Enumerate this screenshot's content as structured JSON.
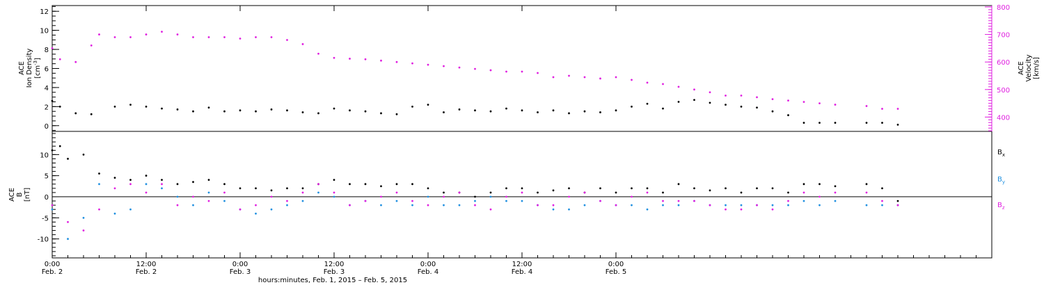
{
  "chart_data": [
    {
      "type": "scatter",
      "panel": "top",
      "left_axis": {
        "title_lines": [
          "ACE",
          "Ion Density"
        ],
        "unit_base": "[cm",
        "unit_sup": "-3",
        "unit_end": "]",
        "ticks": [
          0,
          2,
          4,
          6,
          8,
          10,
          12
        ],
        "ylim": [
          -0.6,
          12.6
        ],
        "color": "#000000"
      },
      "right_axis": {
        "title_lines": [
          "ACE",
          "Velocity"
        ],
        "unit": "[km/s]",
        "ticks": [
          400,
          500,
          600,
          700,
          800
        ],
        "ylim": [
          348,
          805
        ],
        "color": "#e020e0"
      },
      "series": [
        {
          "role": "density",
          "color": "#000000",
          "points": [
            [
              0,
              2.6
            ],
            [
              1,
              2.0
            ],
            [
              3,
              1.3
            ],
            [
              5,
              1.2
            ],
            [
              8,
              2.0
            ],
            [
              10,
              2.2
            ],
            [
              12,
              2.0
            ],
            [
              14,
              1.8
            ],
            [
              16,
              1.7
            ],
            [
              18,
              1.5
            ],
            [
              20,
              1.9
            ],
            [
              22,
              1.5
            ],
            [
              24,
              1.6
            ],
            [
              26,
              1.5
            ],
            [
              28,
              1.7
            ],
            [
              30,
              1.6
            ],
            [
              32,
              1.4
            ],
            [
              34,
              1.3
            ],
            [
              36,
              1.8
            ],
            [
              38,
              1.6
            ],
            [
              40,
              1.5
            ],
            [
              42,
              1.3
            ],
            [
              44,
              1.2
            ],
            [
              46,
              2.0
            ],
            [
              48,
              2.2
            ],
            [
              50,
              1.4
            ],
            [
              52,
              1.7
            ],
            [
              54,
              1.6
            ],
            [
              56,
              1.5
            ],
            [
              58,
              1.8
            ],
            [
              60,
              1.6
            ],
            [
              62,
              1.4
            ],
            [
              64,
              1.6
            ],
            [
              66,
              1.3
            ],
            [
              68,
              1.5
            ],
            [
              70,
              1.4
            ],
            [
              72,
              1.6
            ],
            [
              74,
              2.0
            ],
            [
              76,
              2.3
            ],
            [
              78,
              1.8
            ],
            [
              80,
              2.5
            ],
            [
              82,
              2.7
            ],
            [
              84,
              2.4
            ],
            [
              86,
              2.2
            ],
            [
              88,
              2.0
            ],
            [
              90,
              1.9
            ],
            [
              92,
              1.5
            ],
            [
              94,
              1.1
            ],
            [
              96,
              0.3
            ],
            [
              98,
              0.3
            ],
            [
              100,
              0.3
            ],
            [
              104,
              0.3
            ],
            [
              106,
              0.3
            ],
            [
              108,
              0.1
            ]
          ]
        },
        {
          "role": "velocity",
          "color": "#e020e0",
          "points": [
            [
              0,
              650
            ],
            [
              1,
              610
            ],
            [
              3,
              600
            ],
            [
              5,
              660
            ],
            [
              6,
              700
            ],
            [
              8,
              690
            ],
            [
              10,
              690
            ],
            [
              12,
              700
            ],
            [
              14,
              710
            ],
            [
              16,
              700
            ],
            [
              18,
              690
            ],
            [
              20,
              690
            ],
            [
              22,
              690
            ],
            [
              24,
              685
            ],
            [
              26,
              690
            ],
            [
              28,
              690
            ],
            [
              30,
              680
            ],
            [
              32,
              665
            ],
            [
              34,
              630
            ],
            [
              36,
              615
            ],
            [
              38,
              612
            ],
            [
              40,
              610
            ],
            [
              42,
              605
            ],
            [
              44,
              600
            ],
            [
              46,
              595
            ],
            [
              48,
              590
            ],
            [
              50,
              585
            ],
            [
              52,
              580
            ],
            [
              54,
              575
            ],
            [
              56,
              570
            ],
            [
              58,
              565
            ],
            [
              60,
              565
            ],
            [
              62,
              560
            ],
            [
              64,
              545
            ],
            [
              66,
              550
            ],
            [
              68,
              545
            ],
            [
              70,
              540
            ],
            [
              72,
              545
            ],
            [
              74,
              535
            ],
            [
              76,
              525
            ],
            [
              78,
              520
            ],
            [
              80,
              510
            ],
            [
              82,
              500
            ],
            [
              84,
              490
            ],
            [
              86,
              478
            ],
            [
              88,
              478
            ],
            [
              90,
              472
            ],
            [
              92,
              465
            ],
            [
              94,
              460
            ],
            [
              96,
              455
            ],
            [
              98,
              450
            ],
            [
              100,
              445
            ],
            [
              104,
              440
            ],
            [
              106,
              430
            ],
            [
              108,
              430
            ]
          ]
        }
      ]
    },
    {
      "type": "scatter",
      "panel": "bottom",
      "left_axis": {
        "title_lines": [
          "ACE",
          "B"
        ],
        "unit": "[nT]",
        "ticks": [
          -10,
          -5,
          0,
          5,
          10
        ],
        "ylim": [
          -14.5,
          15.5
        ],
        "zero_line": true
      },
      "series": [
        {
          "name": "B",
          "sub": "x",
          "color": "#000000",
          "points": [
            [
              0,
              11
            ],
            [
              1,
              12
            ],
            [
              2,
              9
            ],
            [
              4,
              10
            ],
            [
              6,
              5.5
            ],
            [
              8,
              4.5
            ],
            [
              10,
              4
            ],
            [
              12,
              5
            ],
            [
              14,
              4
            ],
            [
              16,
              3
            ],
            [
              18,
              3.5
            ],
            [
              20,
              4
            ],
            [
              22,
              3
            ],
            [
              24,
              2
            ],
            [
              26,
              2
            ],
            [
              28,
              1.5
            ],
            [
              30,
              2
            ],
            [
              32,
              2
            ],
            [
              34,
              3
            ],
            [
              36,
              4
            ],
            [
              38,
              3
            ],
            [
              40,
              3
            ],
            [
              42,
              2.5
            ],
            [
              44,
              3
            ],
            [
              46,
              3
            ],
            [
              48,
              2
            ],
            [
              50,
              1
            ],
            [
              52,
              1
            ],
            [
              54,
              0
            ],
            [
              56,
              1
            ],
            [
              58,
              2
            ],
            [
              60,
              2
            ],
            [
              62,
              1
            ],
            [
              64,
              1.5
            ],
            [
              66,
              2
            ],
            [
              68,
              1
            ],
            [
              70,
              2
            ],
            [
              72,
              1
            ],
            [
              74,
              2
            ],
            [
              76,
              2
            ],
            [
              78,
              1
            ],
            [
              80,
              3
            ],
            [
              82,
              2
            ],
            [
              84,
              1.5
            ],
            [
              86,
              2
            ],
            [
              88,
              1
            ],
            [
              90,
              2
            ],
            [
              92,
              2
            ],
            [
              94,
              1
            ],
            [
              96,
              3
            ],
            [
              98,
              3
            ],
            [
              100,
              2.5
            ],
            [
              104,
              3
            ],
            [
              106,
              2
            ],
            [
              108,
              -1
            ]
          ]
        },
        {
          "name": "B",
          "sub": "y",
          "color": "#2090e0",
          "points": [
            [
              0,
              -3
            ],
            [
              2,
              -10
            ],
            [
              4,
              -5
            ],
            [
              6,
              3
            ],
            [
              8,
              -4
            ],
            [
              10,
              -3
            ],
            [
              12,
              3
            ],
            [
              14,
              2
            ],
            [
              16,
              0
            ],
            [
              18,
              -2
            ],
            [
              20,
              1
            ],
            [
              22,
              -1
            ],
            [
              24,
              -3
            ],
            [
              26,
              -4
            ],
            [
              28,
              -3
            ],
            [
              30,
              -2
            ],
            [
              32,
              -1
            ],
            [
              34,
              1
            ],
            [
              36,
              0
            ],
            [
              38,
              -2
            ],
            [
              40,
              -1
            ],
            [
              42,
              -2
            ],
            [
              44,
              -1
            ],
            [
              46,
              -2
            ],
            [
              48,
              0
            ],
            [
              50,
              -2
            ],
            [
              52,
              -2
            ],
            [
              54,
              -1
            ],
            [
              56,
              0
            ],
            [
              58,
              -1
            ],
            [
              60,
              -1
            ],
            [
              62,
              -2
            ],
            [
              64,
              -3
            ],
            [
              66,
              -3
            ],
            [
              68,
              -2
            ],
            [
              70,
              -1
            ],
            [
              72,
              -2
            ],
            [
              74,
              -2
            ],
            [
              76,
              -3
            ],
            [
              78,
              -2
            ],
            [
              80,
              -2
            ],
            [
              82,
              -1
            ],
            [
              84,
              -2
            ],
            [
              86,
              -2
            ],
            [
              88,
              -2
            ],
            [
              90,
              -2
            ],
            [
              92,
              -2
            ],
            [
              94,
              -2
            ],
            [
              96,
              -1
            ],
            [
              98,
              -2
            ],
            [
              100,
              -1
            ],
            [
              104,
              -2
            ],
            [
              106,
              -2
            ],
            [
              108,
              -2
            ]
          ]
        },
        {
          "name": "B",
          "sub": "z",
          "color": "#e020e0",
          "points": [
            [
              0,
              -2
            ],
            [
              2,
              -6
            ],
            [
              4,
              -8
            ],
            [
              6,
              -3
            ],
            [
              8,
              2
            ],
            [
              10,
              3
            ],
            [
              12,
              1
            ],
            [
              14,
              3
            ],
            [
              16,
              -2
            ],
            [
              18,
              0
            ],
            [
              20,
              -1
            ],
            [
              22,
              1
            ],
            [
              24,
              -3
            ],
            [
              26,
              -2
            ],
            [
              28,
              0
            ],
            [
              30,
              -1
            ],
            [
              32,
              1
            ],
            [
              34,
              3
            ],
            [
              36,
              1
            ],
            [
              38,
              -2
            ],
            [
              40,
              -1
            ],
            [
              42,
              0
            ],
            [
              44,
              1
            ],
            [
              46,
              -1
            ],
            [
              48,
              -2
            ],
            [
              50,
              0
            ],
            [
              52,
              1
            ],
            [
              54,
              -2
            ],
            [
              56,
              -3
            ],
            [
              58,
              0
            ],
            [
              60,
              1
            ],
            [
              62,
              -2
            ],
            [
              64,
              -2
            ],
            [
              66,
              0
            ],
            [
              68,
              1
            ],
            [
              70,
              -1
            ],
            [
              72,
              -2
            ],
            [
              74,
              0
            ],
            [
              76,
              1
            ],
            [
              78,
              -1
            ],
            [
              80,
              -1
            ],
            [
              82,
              -1
            ],
            [
              84,
              -2
            ],
            [
              86,
              -3
            ],
            [
              88,
              -3
            ],
            [
              90,
              -2
            ],
            [
              92,
              -3
            ],
            [
              94,
              -1
            ],
            [
              96,
              1
            ],
            [
              98,
              0
            ],
            [
              100,
              1
            ],
            [
              104,
              1
            ],
            [
              106,
              -1
            ],
            [
              108,
              -2
            ]
          ]
        }
      ]
    }
  ],
  "x_axis": {
    "xlim": [
      0,
      120
    ],
    "ticks": [
      {
        "x": 0,
        "time": "0:00",
        "date": "Feb. 2"
      },
      {
        "x": 12,
        "time": "12:00",
        "date": "Feb. 2"
      },
      {
        "x": 24,
        "time": "0:00",
        "date": "Feb. 3"
      },
      {
        "x": 36,
        "time": "12:00",
        "date": "Feb. 3"
      },
      {
        "x": 48,
        "time": "0:00",
        "date": "Feb. 4"
      },
      {
        "x": 60,
        "time": "12:00",
        "date": "Feb. 4"
      },
      {
        "x": 72,
        "time": "0:00",
        "date": "Feb. 5"
      }
    ],
    "title": "hours:minutes, Feb.  1, 2015 – Feb.  5, 2015"
  }
}
